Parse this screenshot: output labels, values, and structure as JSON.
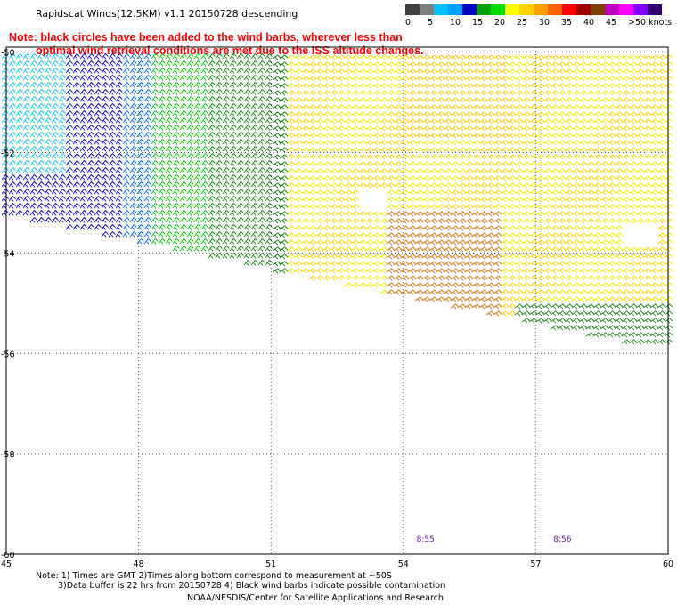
{
  "header": {
    "title": "Rapidscat Winds(12.5KM) v1.1 20150728 descending",
    "note_line1": "Note: black circles have been added to the wind barbs, wherever less than",
    "note_line2": "optimal wind retrieval conditions are met due to the ISS altitude changes."
  },
  "legend": {
    "colors": [
      "#404040",
      "#7f7f7f",
      "#00c0ff",
      "#00a0ff",
      "#0000c0",
      "#00a000",
      "#00e000",
      "#ffff00",
      "#ffd200",
      "#ffa000",
      "#ff6000",
      "#ff0000",
      "#a00000",
      "#804000",
      "#c000c0",
      "#ff00ff",
      "#8000ff",
      "#300070"
    ],
    "labels": [
      "0",
      "5",
      "10",
      "15",
      "20",
      "25",
      "30",
      "35",
      "40",
      "45",
      ">50 knots"
    ]
  },
  "axes": {
    "lat_labels": [
      "-50",
      "-52",
      "-54",
      "-56",
      "-58",
      "-60"
    ],
    "lon_labels": [
      "45",
      "48",
      "51",
      "54",
      "57",
      "60"
    ],
    "lat_values": [
      -50,
      -52,
      -54,
      -56,
      -58,
      -60
    ],
    "lon_values": [
      45,
      48,
      51,
      54,
      57,
      60
    ]
  },
  "time_labels": [
    "8:55",
    "8:56"
  ],
  "time_lons": [
    54.3,
    57.4
  ],
  "footer": {
    "line1": "Note: 1) Times are GMT 2)Times along bottom correspond to measurement at ~50S",
    "line2": "3)Data buffer is 22 hrs from 20150728 4) Black wind barbs indicate possible contamination",
    "line3": "NOAA/NESDIS/Center for Satellite Applications and Research"
  }
}
